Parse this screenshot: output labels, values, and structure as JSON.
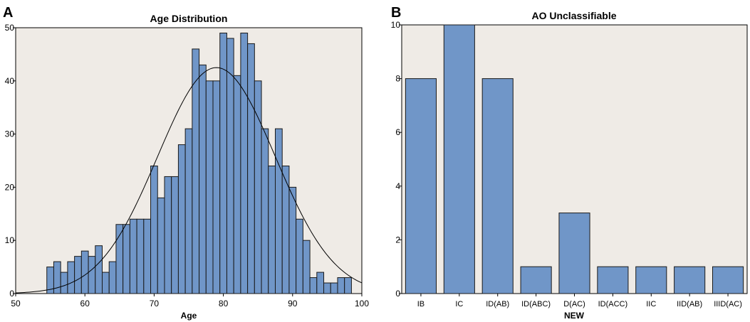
{
  "chart_data": [
    {
      "panel": "A",
      "type": "bar",
      "subtype": "histogram",
      "title": "Age Distribution",
      "xlabel": "Age",
      "ylabel": "",
      "xlim": [
        50,
        100
      ],
      "ylim": [
        0,
        50
      ],
      "xticks": [
        50,
        60,
        70,
        80,
        90,
        100
      ],
      "yticks": [
        0,
        10,
        20,
        30,
        40,
        50
      ],
      "bin_width": 1,
      "x": [
        55,
        56,
        57,
        58,
        59,
        60,
        61,
        62,
        63,
        64,
        65,
        66,
        67,
        68,
        69,
        70,
        71,
        72,
        73,
        74,
        75,
        76,
        77,
        78,
        79,
        80,
        81,
        82,
        83,
        84,
        85,
        86,
        87,
        88,
        89,
        90,
        91,
        92,
        93,
        94,
        95,
        96,
        97,
        98
      ],
      "values": [
        5,
        6,
        4,
        6,
        7,
        8,
        7,
        9,
        4,
        6,
        13,
        13,
        14,
        14,
        14,
        24,
        18,
        22,
        22,
        28,
        31,
        46,
        43,
        40,
        40,
        49,
        48,
        41,
        49,
        47,
        40,
        31,
        24,
        31,
        24,
        20,
        14,
        10,
        3,
        4,
        2,
        2,
        3,
        3
      ],
      "overlay": {
        "type": "normal-curve",
        "mean": 79,
        "sd": 8.5,
        "peak": 42.5
      }
    },
    {
      "panel": "B",
      "type": "bar",
      "title": "AO Unclassifiable",
      "xlabel": "NEW",
      "ylabel": "",
      "ylim": [
        0,
        10
      ],
      "yticks": [
        0,
        2,
        4,
        6,
        8,
        10
      ],
      "categories": [
        "IB",
        "IC",
        "ID(AB)",
        "ID(ABC)",
        "D(AC)",
        "ID(ACC)",
        "IIC",
        "IID(AB)",
        "IIID(AC)"
      ],
      "values": [
        8,
        10,
        8,
        1,
        3,
        1,
        1,
        1,
        1
      ]
    }
  ]
}
